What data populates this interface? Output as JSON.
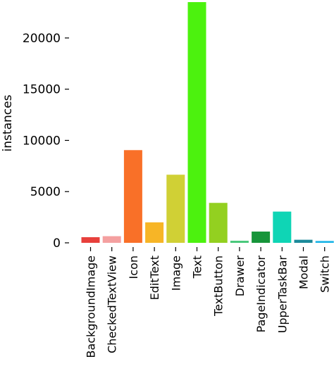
{
  "chart_data": {
    "type": "bar",
    "title": "",
    "xlabel": "",
    "ylabel": "instances",
    "ylim": [
      0,
      23500
    ],
    "grid": false,
    "yticks": [
      0,
      5000,
      10000,
      15000,
      20000
    ],
    "ytick_labels": [
      "0",
      "5000",
      "10000",
      "15000",
      "20000"
    ],
    "categories": [
      "BackgroundImage",
      "CheckedTextView",
      "Icon",
      "EditText",
      "Image",
      "Text",
      "TextButton",
      "Drawer",
      "PageIndicator",
      "UpperTaskBar",
      "Modal",
      "Switch"
    ],
    "values": [
      550,
      650,
      9050,
      2000,
      6650,
      23500,
      3900,
      200,
      1100,
      3050,
      300,
      180
    ],
    "colors": [
      "#e8403c",
      "#f4a0a0",
      "#f97028",
      "#f7b526",
      "#d0d035",
      "#4cf20e",
      "#93d020",
      "#45c778",
      "#17953a",
      "#0fd5b5",
      "#1c8a9a",
      "#18b3e6"
    ]
  }
}
